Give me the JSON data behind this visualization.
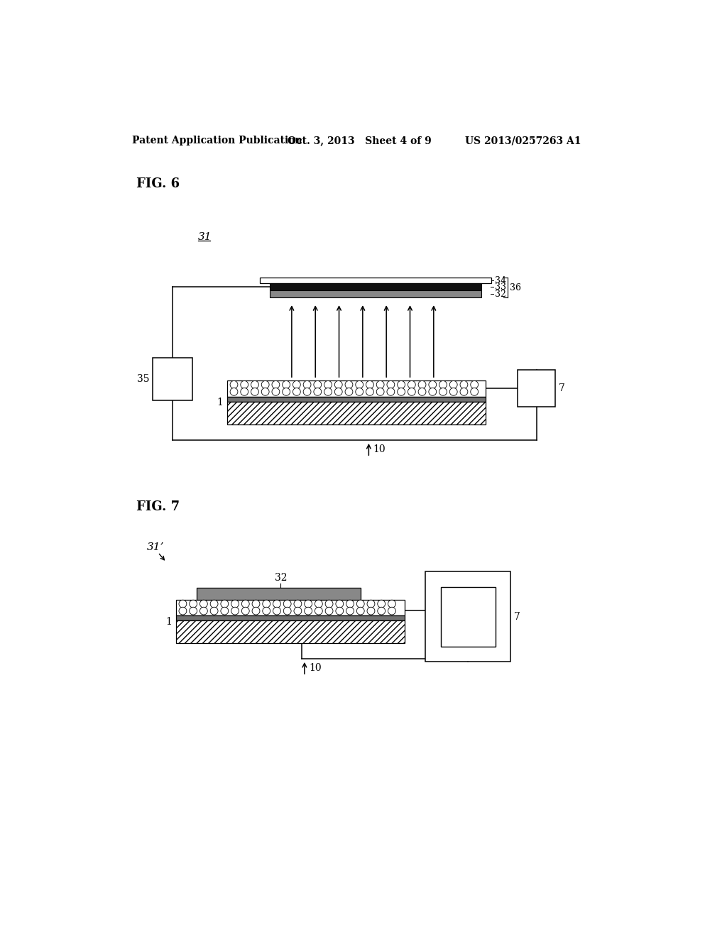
{
  "bg_color": "#ffffff",
  "header_left": "Patent Application Publication",
  "header_mid": "Oct. 3, 2013   Sheet 4 of 9",
  "header_right": "US 2013/0257263 A1",
  "fig6_label": "FIG. 6",
  "fig7_label": "FIG. 7",
  "label_31": "31",
  "label_31prime": "31’",
  "label_32": "32",
  "label_33": "33",
  "label_34": "34",
  "label_35": "35",
  "label_36": "36",
  "label_7": "7",
  "label_1": "1",
  "label_10": "10"
}
